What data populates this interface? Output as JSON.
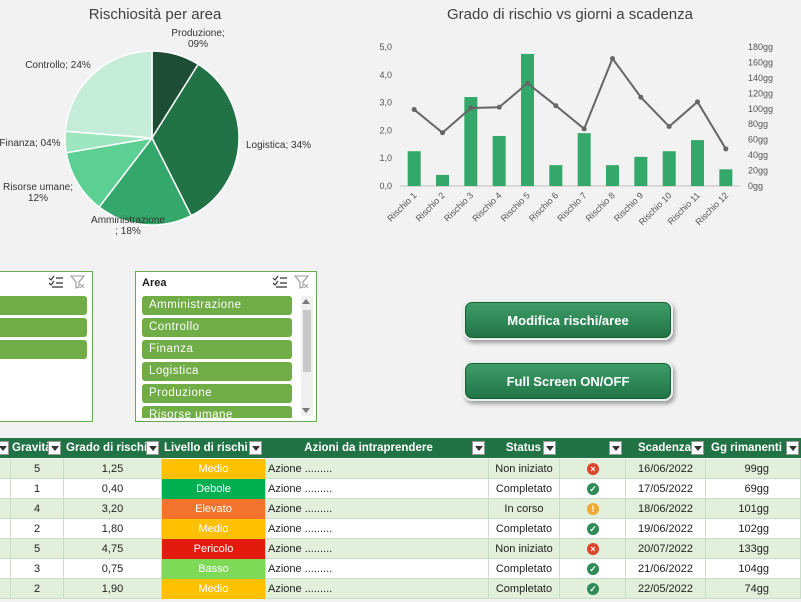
{
  "pie": {
    "title": "Rischiosità per area",
    "labels": [
      "Produzione;\n09%",
      "Logistica; 34%",
      "Amministrazione\n; 18%",
      "Risorse umane;\n12%",
      "Finanza; 04%",
      "Controllo; 24%"
    ]
  },
  "combo": {
    "title": "Grado di rischio vs giorni a scadenza",
    "left_ticks": [
      "5,0",
      "4,0",
      "3,0",
      "2,0",
      "1,0",
      "0,0"
    ],
    "right_ticks": [
      "180gg",
      "160gg",
      "140gg",
      "120gg",
      "100gg",
      "80gg",
      "60gg",
      "40gg",
      "20gg",
      "0gg"
    ]
  },
  "chart_data": [
    {
      "type": "pie",
      "title": "Rischiosità per area",
      "categories": [
        "Produzione",
        "Logistica",
        "Amministrazione",
        "Risorse umane",
        "Finanza",
        "Controllo"
      ],
      "values": [
        9,
        34,
        18,
        12,
        4,
        24
      ],
      "colors": [
        "#1e4d35",
        "#217346",
        "#33a86a",
        "#5ccf93",
        "#9ee6c0",
        "#c5ecd9"
      ]
    },
    {
      "type": "bar",
      "title": "Grado di rischio vs giorni a scadenza",
      "categories": [
        "Rischio 1",
        "Rischio 2",
        "Rischio 3",
        "Rischio 4",
        "Rischio 5",
        "Rischio 6",
        "Rischio 7",
        "Rischio 8",
        "Rischio 9",
        "Rischio 10",
        "Rischio 11",
        "Rischio 12"
      ],
      "series": [
        {
          "type": "bar",
          "axis": "left",
          "values": [
            1.25,
            0.4,
            3.2,
            1.8,
            4.75,
            0.75,
            1.9,
            0.75,
            1.05,
            1.25,
            1.65,
            0.6
          ],
          "color": "#33a86a"
        },
        {
          "type": "line",
          "axis": "right",
          "values": [
            99,
            69,
            101,
            102,
            133,
            104,
            74,
            165,
            115,
            77,
            109,
            48
          ],
          "color": "#666666"
        }
      ],
      "ylim": [
        0,
        5
      ],
      "y2lim": [
        0,
        180
      ]
    }
  ],
  "slicer_left": {
    "items": [
      "",
      "",
      ""
    ]
  },
  "slicer_area": {
    "title": "Area",
    "items": [
      "Amministrazione",
      "Controllo",
      "Finanza",
      "Logistica",
      "Produzione",
      "Risorse umane"
    ]
  },
  "buttons": {
    "modifica": "Modifica rischi/aree",
    "fullscreen": "Full Screen ON/OFF"
  },
  "table": {
    "headers": [
      "",
      "Gravità",
      "Grado di rischio",
      "Livello di rischio",
      "Azioni da intraprendere",
      "Status",
      "",
      "Scadenza",
      "Gg rimanenti"
    ],
    "rows": [
      {
        "grav": "5",
        "grado": "1,25",
        "livello": "Medio",
        "lcolor": "#ffc000",
        "azione": "Azione .........",
        "status": "Non iniziato",
        "icon": "×",
        "icolor": "#d9452b",
        "scad": "16/06/2022",
        "gg": "99gg"
      },
      {
        "grav": "1",
        "grado": "0,40",
        "livello": "Debole",
        "lcolor": "#00b050",
        "azione": "Azione .........",
        "status": "Completato",
        "icon": "✓",
        "icolor": "#2e8b57",
        "scad": "17/05/2022",
        "gg": "69gg"
      },
      {
        "grav": "4",
        "grado": "3,20",
        "livello": "Elevato",
        "lcolor": "#f4732c",
        "azione": "Azione .........",
        "status": "In corso",
        "icon": "!",
        "icolor": "#f0a92e",
        "scad": "18/06/2022",
        "gg": "101gg"
      },
      {
        "grav": "2",
        "grado": "1,80",
        "livello": "Medio",
        "lcolor": "#ffc000",
        "azione": "Azione .........",
        "status": "Completato",
        "icon": "✓",
        "icolor": "#2e8b57",
        "scad": "19/06/2022",
        "gg": "102gg"
      },
      {
        "grav": "5",
        "grado": "4,75",
        "livello": "Pericolo",
        "lcolor": "#e31b0c",
        "azione": "Azione .........",
        "status": "Non iniziato",
        "icon": "×",
        "icolor": "#d9452b",
        "scad": "20/07/2022",
        "gg": "133gg"
      },
      {
        "grav": "3",
        "grado": "0,75",
        "livello": "Basso",
        "lcolor": "#7ed957",
        "azione": "Azione .........",
        "status": "Completato",
        "icon": "✓",
        "icolor": "#2e8b57",
        "scad": "21/06/2022",
        "gg": "104gg"
      },
      {
        "grav": "2",
        "grado": "1,90",
        "livello": "Medio",
        "lcolor": "#ffc000",
        "azione": "Azione .........",
        "status": "Completato",
        "icon": "✓",
        "icolor": "#2e8b57",
        "scad": "22/05/2022",
        "gg": "74gg"
      }
    ]
  }
}
